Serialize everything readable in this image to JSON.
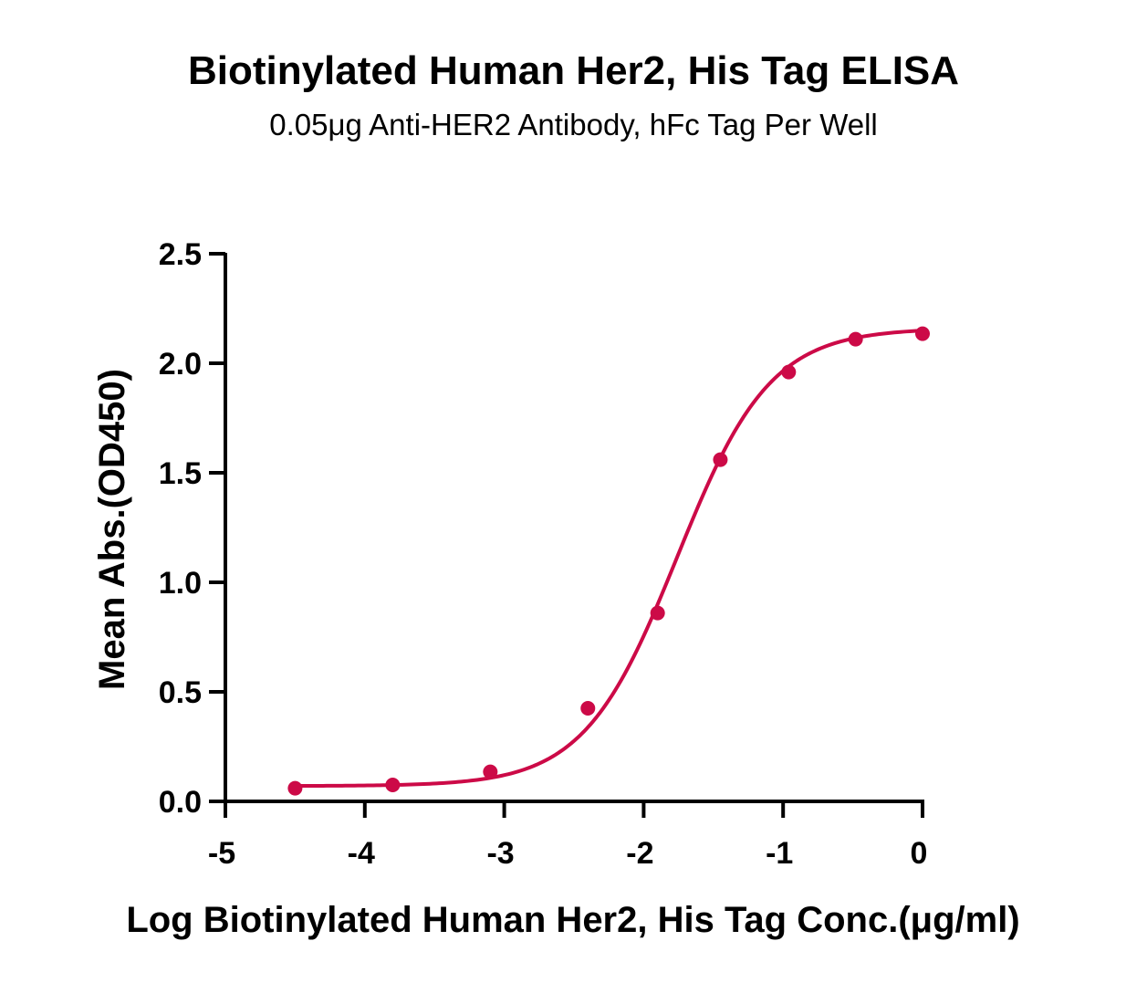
{
  "chart_data": {
    "type": "line",
    "title": "Biotinylated Human Her2, His Tag ELISA",
    "subtitle": "0.05μg Anti-HER2 Antibody, hFc Tag Per Well",
    "xlabel": "Log Biotinylated Human Her2, His Tag Conc.(μg/ml)",
    "ylabel": "Mean Abs.(OD450)",
    "xlim": [
      -5,
      0
    ],
    "ylim": [
      0,
      2.5
    ],
    "x_ticks": [
      -5,
      -4,
      -3,
      -2,
      -1,
      0
    ],
    "x_tick_labels": [
      "-5",
      "-4",
      "-3",
      "-2",
      "-1",
      "0"
    ],
    "y_ticks": [
      0,
      0.5,
      1,
      1.5,
      2,
      2.5
    ],
    "y_tick_labels": [
      "0.0",
      "0.5",
      "1.0",
      "1.5",
      "2.0",
      "2.5"
    ],
    "grid": false,
    "legend": false,
    "color": "#cc0a47",
    "series": [
      {
        "x": [
          -4.5,
          -3.8,
          -3.1,
          -2.4,
          -1.9,
          -1.45,
          -0.96,
          -0.48,
          0.0
        ],
        "y": [
          0.06,
          0.075,
          0.135,
          0.425,
          0.86,
          1.56,
          1.96,
          2.11,
          2.135
        ]
      }
    ],
    "fit": {
      "model": "4PL",
      "bottom": 0.07,
      "top": 2.16,
      "log_ec50": -1.76,
      "hill_slope": 1.3
    }
  }
}
